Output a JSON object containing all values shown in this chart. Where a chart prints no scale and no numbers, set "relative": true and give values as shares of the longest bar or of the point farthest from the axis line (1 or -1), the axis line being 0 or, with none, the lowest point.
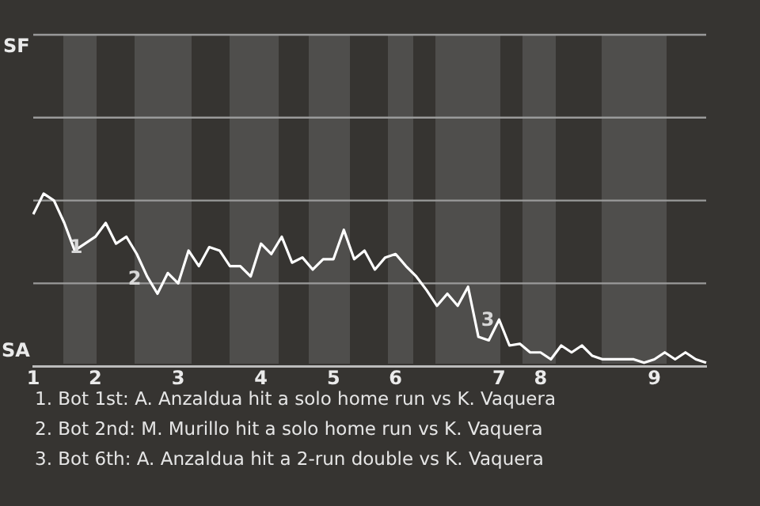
{
  "chart_data": {
    "type": "line",
    "relative": true,
    "legend": false,
    "marker": "none",
    "line_style": "solid",
    "categories": [
      "1",
      null,
      null,
      null,
      null,
      null,
      "2",
      null,
      null,
      null,
      null,
      null,
      null,
      null,
      "3",
      null,
      null,
      null,
      null,
      null,
      null,
      null,
      "4",
      null,
      null,
      null,
      null,
      null,
      null,
      "5",
      null,
      null,
      null,
      null,
      null,
      "6",
      null,
      null,
      null,
      null,
      null,
      null,
      null,
      null,
      null,
      "7",
      null,
      null,
      null,
      "8",
      null,
      null,
      null,
      null,
      null,
      null,
      null,
      null,
      null,
      null,
      "9",
      null,
      null,
      null,
      null,
      null
    ],
    "series": [
      {
        "color": "#ffffff",
        "values": [
          0.88,
          1,
          0.96,
          0.83,
          0.67,
          0.71,
          0.75,
          0.83,
          0.71,
          0.75,
          0.65,
          0.52,
          0.42,
          0.54,
          0.48,
          0.67,
          0.58,
          0.69,
          0.67,
          0.58,
          0.58,
          0.52,
          0.71,
          0.65,
          0.75,
          0.6,
          0.63,
          0.56,
          0.62,
          0.62,
          0.79,
          0.62,
          0.67,
          0.56,
          0.63,
          0.65,
          0.58,
          0.52,
          0.44,
          0.35,
          0.42,
          0.35,
          0.46,
          0.17,
          0.15,
          0.27,
          0.12,
          0.13,
          0.08,
          0.08,
          0.04,
          0.12,
          0.08,
          0.12,
          0.06,
          0.04,
          0.04,
          0.04,
          0.04,
          0.02,
          0.04,
          0.08,
          0.04,
          0.08,
          0.04,
          0.02
        ]
      }
    ],
    "ref_lines": [
      {
        "axis": "y",
        "value": 0.48,
        "color": "#9a9a9a"
      },
      {
        "axis": "y",
        "value": 0.96,
        "color": "#9a9a9a"
      },
      {
        "axis": "y",
        "value": 1.44,
        "color": "#9a9a9a"
      },
      {
        "axis": "y",
        "value": 1.92,
        "color": "#9a9a9a"
      }
    ],
    "annotations": [
      "SF",
      "SA",
      "1",
      "2",
      "3",
      "1. Bot 1st: A. Anzaldua hit a solo home run vs K. Vaquera",
      "2. Bot 2nd: M. Murillo hit a solo home run vs K. Vaquera",
      "3. Bot 6th: A. Anzaldua hit a 2-run double vs K. Vaquera"
    ]
  }
}
